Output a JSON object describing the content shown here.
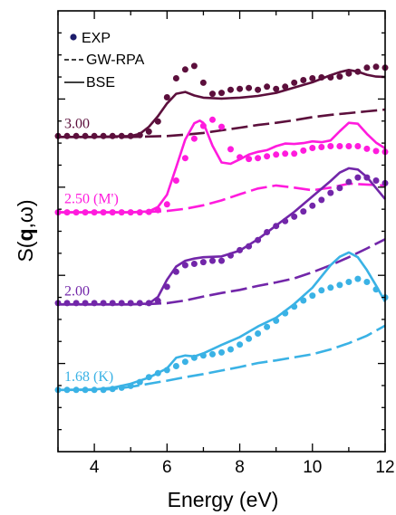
{
  "chart_data": {
    "type": "line",
    "xlabel": "Energy (eV)",
    "ylabel_prefix": "S(",
    "ylabel_bold": "q",
    "ylabel_suffix": ",ω)",
    "xlim": [
      3,
      12
    ],
    "xticks": [
      4,
      6,
      8,
      10,
      12
    ],
    "ylim": [
      0,
      100
    ],
    "yticks_shown": false,
    "grid": false,
    "legend": {
      "placement": "top-left",
      "entries": [
        {
          "label": "EXP",
          "style": "dots"
        },
        {
          "label": "GW-RPA",
          "style": "dashed"
        },
        {
          "label": "BSE",
          "style": "solid"
        }
      ]
    },
    "groups": [
      {
        "label": "3.00",
        "color": "#5c0f3c",
        "baseline": 71.4,
        "exp": [
          [
            3,
            71.6
          ],
          [
            3.25,
            71.6
          ],
          [
            3.5,
            71.6
          ],
          [
            3.75,
            71.6
          ],
          [
            4,
            71.6
          ],
          [
            4.25,
            71.6
          ],
          [
            4.5,
            71.6
          ],
          [
            4.75,
            71.6
          ],
          [
            5,
            71.6
          ],
          [
            5.25,
            71.8
          ],
          [
            5.5,
            72.6
          ],
          [
            5.75,
            74.9
          ],
          [
            6,
            80.4
          ],
          [
            6.25,
            84.7
          ],
          [
            6.5,
            86.7
          ],
          [
            6.75,
            87.5
          ],
          [
            7,
            83.7
          ],
          [
            7.25,
            81.2
          ],
          [
            7.5,
            81.4
          ],
          [
            7.75,
            82.1
          ],
          [
            8,
            82.3
          ],
          [
            8.25,
            82.5
          ],
          [
            8.5,
            82.1
          ],
          [
            8.75,
            82.8
          ],
          [
            9,
            82.3
          ],
          [
            9.25,
            82.8
          ],
          [
            9.5,
            83.7
          ],
          [
            9.75,
            84.3
          ],
          [
            10,
            84.7
          ],
          [
            10.25,
            84.9
          ],
          [
            10.5,
            84.9
          ],
          [
            10.75,
            85.1
          ],
          [
            11,
            85.8
          ],
          [
            11.25,
            86.2
          ],
          [
            11.5,
            87.1
          ],
          [
            11.75,
            87.3
          ],
          [
            12,
            87.1
          ]
        ],
        "bse": [
          [
            3,
            71.4
          ],
          [
            4,
            71.4
          ],
          [
            5,
            71.6
          ],
          [
            5.25,
            72.1
          ],
          [
            5.5,
            73.7
          ],
          [
            5.75,
            76.1
          ],
          [
            6,
            79.0
          ],
          [
            6.25,
            81.2
          ],
          [
            6.5,
            81.6
          ],
          [
            6.75,
            80.8
          ],
          [
            7,
            80.3
          ],
          [
            7.5,
            80.1
          ],
          [
            8,
            80.3
          ],
          [
            8.5,
            80.7
          ],
          [
            9,
            81.4
          ],
          [
            9.5,
            82.6
          ],
          [
            10,
            83.8
          ],
          [
            10.25,
            84.6
          ],
          [
            10.5,
            85.4
          ],
          [
            10.75,
            86.1
          ],
          [
            11,
            86.6
          ],
          [
            11.25,
            86.2
          ],
          [
            11.5,
            85.5
          ],
          [
            11.75,
            85.1
          ],
          [
            12,
            85.0
          ]
        ],
        "rpa": [
          [
            3,
            71.4
          ],
          [
            5,
            71.4
          ],
          [
            6,
            71.6
          ],
          [
            6.5,
            71.9
          ],
          [
            7,
            72.3
          ],
          [
            7.5,
            72.9
          ],
          [
            8,
            73.5
          ],
          [
            8.5,
            74.1
          ],
          [
            9,
            74.6
          ],
          [
            9.5,
            75.2
          ],
          [
            10,
            75.9
          ],
          [
            10.5,
            76.4
          ],
          [
            11,
            76.8
          ],
          [
            11.5,
            77.2
          ],
          [
            12,
            77.6
          ]
        ]
      },
      {
        "label": "2.50 (M')",
        "color": "#ff1bdd",
        "baseline": 54.3,
        "exp": [
          [
            3,
            54.3
          ],
          [
            3.25,
            54.3
          ],
          [
            3.5,
            54.3
          ],
          [
            3.75,
            54.3
          ],
          [
            4,
            54.3
          ],
          [
            4.25,
            54.3
          ],
          [
            4.5,
            54.3
          ],
          [
            4.75,
            54.3
          ],
          [
            5,
            54.3
          ],
          [
            5.25,
            54.3
          ],
          [
            5.5,
            54.4
          ],
          [
            5.75,
            54.8
          ],
          [
            6,
            56.1
          ],
          [
            6.25,
            61.5
          ],
          [
            6.5,
            66.6
          ],
          [
            6.75,
            71.0
          ],
          [
            7,
            73.9
          ],
          [
            7.25,
            75.3
          ],
          [
            7.5,
            73.7
          ],
          [
            7.75,
            68.6
          ],
          [
            8,
            66.8
          ],
          [
            8.25,
            66.4
          ],
          [
            8.5,
            66.6
          ],
          [
            8.75,
            67.0
          ],
          [
            9,
            67.4
          ],
          [
            9.25,
            67.6
          ],
          [
            9.5,
            67.6
          ],
          [
            9.75,
            68.3
          ],
          [
            10,
            68.9
          ],
          [
            10.25,
            69.1
          ],
          [
            10.5,
            69.3
          ],
          [
            10.75,
            69.3
          ],
          [
            11,
            69.3
          ],
          [
            11.25,
            69.3
          ],
          [
            11.5,
            68.7
          ],
          [
            11.75,
            68.2
          ],
          [
            12,
            68.0
          ]
        ],
        "bse": [
          [
            3,
            54.3
          ],
          [
            4,
            54.3
          ],
          [
            5,
            54.3
          ],
          [
            5.5,
            54.5
          ],
          [
            5.75,
            55.5
          ],
          [
            6,
            58.3
          ],
          [
            6.25,
            64.5
          ],
          [
            6.5,
            70.8
          ],
          [
            6.75,
            74.5
          ],
          [
            6.9,
            75.1
          ],
          [
            7,
            74.6
          ],
          [
            7.25,
            69.4
          ],
          [
            7.5,
            65.6
          ],
          [
            7.75,
            65.3
          ],
          [
            8,
            66.3
          ],
          [
            8.25,
            67.4
          ],
          [
            8.5,
            68.0
          ],
          [
            8.75,
            68.4
          ],
          [
            9,
            69.3
          ],
          [
            9.25,
            69.9
          ],
          [
            9.5,
            69.8
          ],
          [
            9.75,
            70.0
          ],
          [
            10,
            70.4
          ],
          [
            10.25,
            70.2
          ],
          [
            10.5,
            70.6
          ],
          [
            10.75,
            72.7
          ],
          [
            11,
            74.6
          ],
          [
            11.25,
            74.4
          ],
          [
            11.5,
            72.1
          ],
          [
            11.75,
            70.1
          ],
          [
            12,
            68.8
          ]
        ],
        "rpa": [
          [
            3,
            54.3
          ],
          [
            5,
            54.3
          ],
          [
            5.5,
            54.4
          ],
          [
            6,
            54.6
          ],
          [
            6.5,
            55.1
          ],
          [
            7,
            55.9
          ],
          [
            7.5,
            57.0
          ],
          [
            8,
            58.4
          ],
          [
            8.5,
            59.7
          ],
          [
            9,
            60.4
          ],
          [
            9.5,
            59.9
          ],
          [
            10,
            59.3
          ],
          [
            10.5,
            59.9
          ],
          [
            11,
            60.8
          ],
          [
            11.5,
            60.6
          ],
          [
            12,
            60.4
          ]
        ]
      },
      {
        "label": "2.00",
        "color": "#7226a9",
        "baseline": 33.4,
        "exp": [
          [
            3,
            33.7
          ],
          [
            3.25,
            33.7
          ],
          [
            3.5,
            33.7
          ],
          [
            3.75,
            33.7
          ],
          [
            4,
            33.7
          ],
          [
            4.25,
            33.7
          ],
          [
            4.5,
            33.7
          ],
          [
            4.75,
            33.7
          ],
          [
            5,
            33.7
          ],
          [
            5.25,
            33.7
          ],
          [
            5.5,
            33.7
          ],
          [
            5.75,
            34.2
          ],
          [
            6,
            37.4
          ],
          [
            6.25,
            40.8
          ],
          [
            6.5,
            42.3
          ],
          [
            6.75,
            42.6
          ],
          [
            7,
            43.0
          ],
          [
            7.25,
            43.3
          ],
          [
            7.5,
            43.3
          ],
          [
            7.75,
            44.5
          ],
          [
            8,
            45.7
          ],
          [
            8.25,
            46.6
          ],
          [
            8.5,
            48.0
          ],
          [
            8.75,
            49.8
          ],
          [
            9,
            51.2
          ],
          [
            9.25,
            52.3
          ],
          [
            9.5,
            53.3
          ],
          [
            9.75,
            54.5
          ],
          [
            10,
            55.8
          ],
          [
            10.25,
            57.1
          ],
          [
            10.5,
            58.7
          ],
          [
            10.75,
            59.8
          ],
          [
            11,
            61.2
          ],
          [
            11.25,
            62.2
          ],
          [
            11.5,
            62.2
          ],
          [
            11.75,
            61.5
          ],
          [
            12,
            60.9
          ]
        ],
        "bse": [
          [
            3,
            33.4
          ],
          [
            4,
            33.4
          ],
          [
            5,
            33.4
          ],
          [
            5.5,
            33.6
          ],
          [
            5.75,
            35.1
          ],
          [
            6,
            39.0
          ],
          [
            6.25,
            42.0
          ],
          [
            6.5,
            43.3
          ],
          [
            6.75,
            43.8
          ],
          [
            7,
            44.1
          ],
          [
            7.5,
            44.3
          ],
          [
            8,
            45.6
          ],
          [
            8.5,
            48.2
          ],
          [
            9,
            51.3
          ],
          [
            9.5,
            54.4
          ],
          [
            10,
            57.9
          ],
          [
            10.5,
            61.4
          ],
          [
            10.75,
            63.3
          ],
          [
            11,
            64.3
          ],
          [
            11.25,
            64.0
          ],
          [
            11.5,
            62.3
          ],
          [
            11.75,
            59.8
          ],
          [
            12,
            57.3
          ]
        ],
        "rpa": [
          [
            3,
            33.4
          ],
          [
            5,
            33.4
          ],
          [
            5.5,
            33.5
          ],
          [
            6,
            33.7
          ],
          [
            6.5,
            34.3
          ],
          [
            7,
            35.2
          ],
          [
            7.5,
            36.0
          ],
          [
            8,
            36.7
          ],
          [
            8.5,
            37.6
          ],
          [
            9,
            38.4
          ],
          [
            9.5,
            39.3
          ],
          [
            10,
            40.7
          ],
          [
            10.5,
            42.3
          ],
          [
            11,
            44.1
          ],
          [
            11.5,
            46.1
          ],
          [
            12,
            48.2
          ]
        ]
      },
      {
        "label": "1.68 (K)",
        "color": "#3ab2e5",
        "baseline": 14.0,
        "exp": [
          [
            3,
            14.0
          ],
          [
            3.25,
            14.0
          ],
          [
            3.5,
            14.0
          ],
          [
            3.75,
            14.0
          ],
          [
            4,
            14.0
          ],
          [
            4.25,
            14.0
          ],
          [
            4.5,
            14.2
          ],
          [
            4.75,
            14.5
          ],
          [
            5,
            14.9
          ],
          [
            5.25,
            15.8
          ],
          [
            5.5,
            16.9
          ],
          [
            5.75,
            17.8
          ],
          [
            6,
            18.5
          ],
          [
            6.25,
            19.4
          ],
          [
            6.5,
            20.4
          ],
          [
            6.75,
            21.3
          ],
          [
            7,
            21.8
          ],
          [
            7.25,
            22.1
          ],
          [
            7.5,
            22.5
          ],
          [
            7.75,
            23.2
          ],
          [
            8,
            24.3
          ],
          [
            8.25,
            25.6
          ],
          [
            8.5,
            26.8
          ],
          [
            8.75,
            28.3
          ],
          [
            9,
            29.7
          ],
          [
            9.25,
            31.4
          ],
          [
            9.5,
            32.9
          ],
          [
            9.75,
            34.3
          ],
          [
            10,
            35.4
          ],
          [
            10.25,
            36.6
          ],
          [
            10.5,
            37.2
          ],
          [
            10.75,
            37.8
          ],
          [
            11,
            38.5
          ],
          [
            11.25,
            39.2
          ],
          [
            11.5,
            38.5
          ],
          [
            11.75,
            36.8
          ],
          [
            12,
            35.0
          ]
        ],
        "bse": [
          [
            3,
            14.0
          ],
          [
            4,
            14.1
          ],
          [
            4.5,
            14.5
          ],
          [
            5,
            15.4
          ],
          [
            5.5,
            16.8
          ],
          [
            6,
            18.9
          ],
          [
            6.25,
            21.3
          ],
          [
            6.5,
            21.8
          ],
          [
            6.75,
            21.6
          ],
          [
            7,
            22.3
          ],
          [
            7.5,
            24.2
          ],
          [
            8,
            26.0
          ],
          [
            8.5,
            28.4
          ],
          [
            9,
            30.4
          ],
          [
            9.5,
            33.5
          ],
          [
            10,
            37.2
          ],
          [
            10.5,
            42.3
          ],
          [
            10.75,
            44.2
          ],
          [
            11,
            45.2
          ],
          [
            11.25,
            44.1
          ],
          [
            11.5,
            41.2
          ],
          [
            11.75,
            37.7
          ],
          [
            12,
            34.0
          ]
        ],
        "rpa": [
          [
            3,
            14.0
          ],
          [
            4,
            14.0
          ],
          [
            4.5,
            14.2
          ],
          [
            5,
            14.7
          ],
          [
            5.5,
            15.4
          ],
          [
            6,
            16.1
          ],
          [
            6.5,
            16.9
          ],
          [
            7,
            17.6
          ],
          [
            7.5,
            18.4
          ],
          [
            8,
            19.2
          ],
          [
            8.5,
            20.1
          ],
          [
            9,
            20.7
          ],
          [
            9.5,
            21.4
          ],
          [
            10,
            22.1
          ],
          [
            10.5,
            23.2
          ],
          [
            11,
            24.6
          ],
          [
            11.5,
            26.3
          ],
          [
            12,
            28.6
          ]
        ]
      }
    ]
  }
}
